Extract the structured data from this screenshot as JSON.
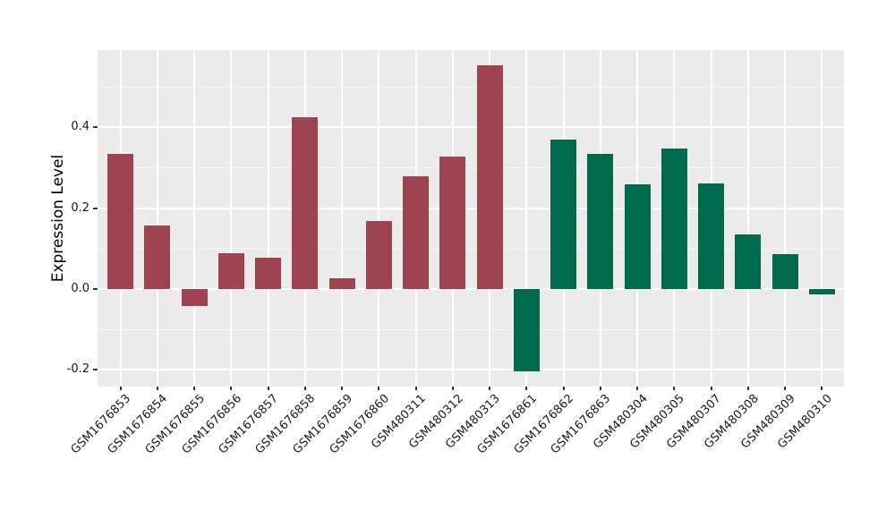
{
  "chart_data": {
    "type": "bar",
    "title": "",
    "xlabel": "",
    "ylabel": "Expression Level",
    "categories": [
      "GSM1676853",
      "GSM1676854",
      "GSM1676855",
      "GSM1676856",
      "GSM1676857",
      "GSM1676858",
      "GSM1676859",
      "GSM1676860",
      "GSM480311",
      "GSM480312",
      "GSM480313",
      "GSM1676861",
      "GSM1676862",
      "GSM1676863",
      "GSM480304",
      "GSM480305",
      "GSM480307",
      "GSM480308",
      "GSM480309",
      "GSM480310"
    ],
    "values": [
      0.335,
      0.158,
      -0.042,
      0.089,
      0.078,
      0.424,
      0.026,
      0.169,
      0.278,
      0.327,
      0.554,
      -0.203,
      0.37,
      0.334,
      0.258,
      0.347,
      0.261,
      0.136,
      0.086,
      -0.013
    ],
    "bar_colors": [
      "#9E4352",
      "#9E4352",
      "#9E4352",
      "#9E4352",
      "#9E4352",
      "#9E4352",
      "#9E4352",
      "#9E4352",
      "#9E4352",
      "#9E4352",
      "#9E4352",
      "#006B4C",
      "#006B4C",
      "#006B4C",
      "#006B4C",
      "#006B4C",
      "#006B4C",
      "#006B4C",
      "#006B4C",
      "#006B4C"
    ],
    "group_colors": {
      "group1_red": "#9E4352",
      "group2_green": "#006B4C"
    },
    "ylim": [
      -0.241,
      0.591
    ],
    "yticks_major": [
      -0.2,
      0.0,
      0.2,
      0.4
    ],
    "ytick_labels": [
      "-0.2",
      "0.0",
      "0.2",
      "0.4"
    ],
    "yticks_minor": [
      -0.1,
      0.1,
      0.3,
      0.5
    ],
    "grid": "on",
    "legend": "none",
    "panel_bg": "#EBEBEB",
    "grid_color": "#FFFFFF",
    "tick_color": "#333333",
    "text_color": "#1a1a1a"
  }
}
